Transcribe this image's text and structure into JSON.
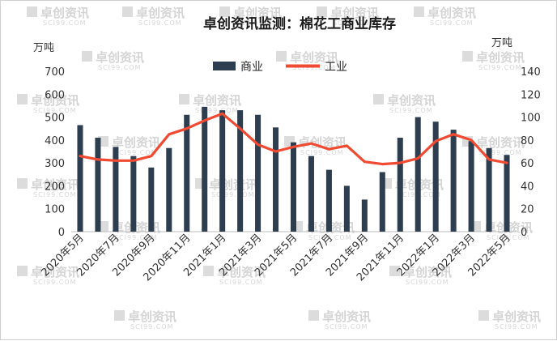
{
  "chart_data": {
    "type": "bar+line",
    "title": "卓创资讯监测：棉花工商业库存",
    "left_unit": "万吨",
    "right_unit": "万吨",
    "left_ylim": [
      0,
      700
    ],
    "left_ticks": [
      0,
      100,
      200,
      300,
      400,
      500,
      600,
      700
    ],
    "right_ylim": [
      0,
      140
    ],
    "right_ticks": [
      0,
      20,
      40,
      60,
      80,
      100,
      120,
      140
    ],
    "x_tick_labels": [
      "2020年5月",
      "2020年7月",
      "2020年9月",
      "2020年11月",
      "2021年1月",
      "2021年3月",
      "2021年5月",
      "2021年7月",
      "2021年9月",
      "2021年11月",
      "2022年1月",
      "2022年3月",
      "2022年5月"
    ],
    "x_tick_every": 2,
    "legend_position": "top-center",
    "series": [
      {
        "name": "商业",
        "kind": "bar",
        "axis": "left",
        "color": "#2c3e50",
        "values": [
          465,
          410,
          370,
          330,
          280,
          365,
          510,
          545,
          530,
          530,
          510,
          455,
          390,
          330,
          270,
          200,
          140,
          260,
          410,
          500,
          480,
          445,
          395,
          365,
          335
        ]
      },
      {
        "name": "工业",
        "kind": "line",
        "axis": "right",
        "color": "#f04b32",
        "values": [
          66,
          63,
          62,
          62,
          66,
          85,
          90,
          97,
          103,
          90,
          76,
          70,
          74,
          77,
          72,
          75,
          61,
          59,
          60,
          64,
          79,
          85,
          80,
          63,
          60
        ]
      }
    ]
  },
  "watermark": {
    "text": "卓创资讯",
    "sub": "SCI99.COM"
  }
}
